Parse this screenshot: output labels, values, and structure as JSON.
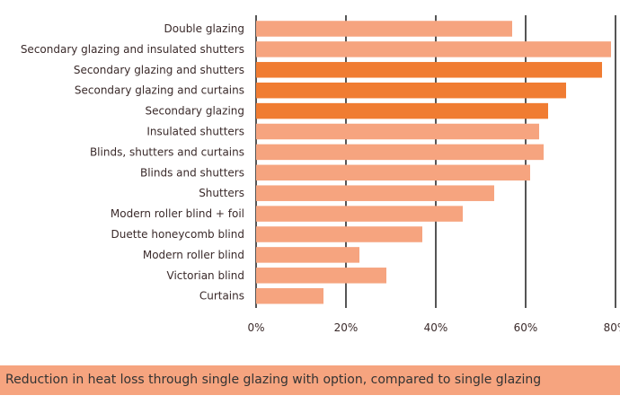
{
  "colors": {
    "bar_light": "#f6a47f",
    "bar_dark": "#f07c32",
    "gridline": "#2b2b2b",
    "caption_bg": "#f6a47f"
  },
  "chart_data": {
    "type": "bar",
    "orientation": "horizontal",
    "categories": [
      "Double glazing",
      "Secondary glazing and insulated shutters",
      "Secondary glazing and shutters",
      "Secondary glazing and curtains",
      "Secondary glazing",
      "Insulated shutters",
      "Blinds, shutters and curtains",
      "Blinds and shutters",
      "Shutters",
      "Modern roller blind + foil",
      "Duette honeycomb blind",
      "Modern roller blind",
      "Victorian blind",
      "Curtains"
    ],
    "values": [
      57,
      79,
      77,
      69,
      65,
      63,
      64,
      61,
      53,
      46,
      37,
      23,
      29,
      15
    ],
    "highlighted": [
      false,
      false,
      true,
      true,
      true,
      false,
      false,
      false,
      false,
      false,
      false,
      false,
      false,
      false
    ],
    "xlim": [
      0,
      80
    ],
    "x_ticks": [
      0,
      20,
      40,
      60,
      80
    ],
    "x_tick_labels": [
      "0%",
      "20%",
      "40%",
      "60%",
      "80%"
    ],
    "grid": "vertical"
  },
  "caption": "Reduction in heat loss through single glazing with option, compared to single glazing"
}
